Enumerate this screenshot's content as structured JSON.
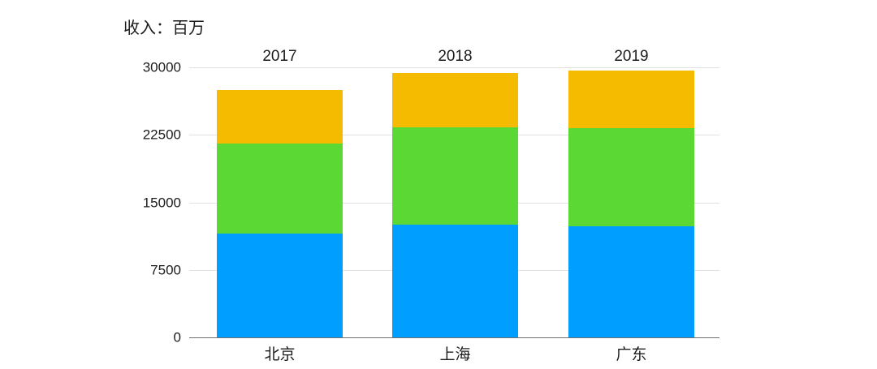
{
  "page": {
    "background": "#ffffff"
  },
  "chart_data": {
    "type": "bar",
    "stacked": true,
    "title": "收入：百万",
    "categories": [
      "北京",
      "上海",
      "广东"
    ],
    "bar_top_labels": [
      "2017",
      "2018",
      "2019"
    ],
    "series": [
      {
        "name": "blue-bottom-segment",
        "color": "#009FFF",
        "values": [
          11500,
          12500,
          12300
        ]
      },
      {
        "name": "green-middle-segment",
        "color": "#5CD834",
        "values": [
          10000,
          10800,
          10900
        ]
      },
      {
        "name": "yellow-top-segment",
        "color": "#F5BB01",
        "values": [
          6000,
          6100,
          6400
        ]
      }
    ],
    "ylim": [
      0,
      30000
    ],
    "y_ticks": [
      0,
      7500,
      15000,
      22500,
      30000
    ],
    "grid": "horizontal",
    "legend": "none",
    "colors": {
      "text": "#1C1C1C",
      "gridline": "#E1E1E1",
      "axis_line": "#6F6F6F"
    }
  }
}
